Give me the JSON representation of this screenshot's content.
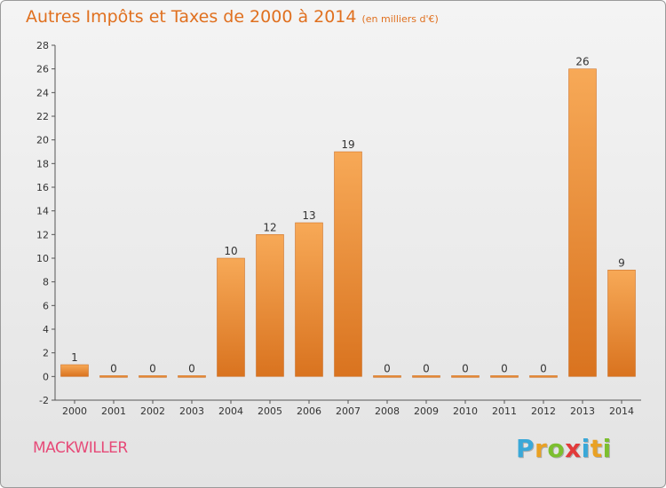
{
  "header": {
    "title": "Autres Impôts et Taxes de 2000 à 2014",
    "unit": "(en milliers d'€)"
  },
  "footer": {
    "commune": "MACKWILLER",
    "brand": "Proxiti",
    "brand_letters": [
      {
        "ch": "P",
        "color": "#3aa8d8"
      },
      {
        "ch": "r",
        "color": "#e9a124"
      },
      {
        "ch": "o",
        "color": "#7cbf2f"
      },
      {
        "ch": "x",
        "color": "#e23a3a"
      },
      {
        "ch": "i",
        "color": "#3aa8d8"
      },
      {
        "ch": "t",
        "color": "#e9a124"
      },
      {
        "ch": "i",
        "color": "#7cbf2f"
      }
    ]
  },
  "colors": {
    "title": "#e0701f",
    "bar_top": "#f7a957",
    "bar_bottom": "#d9731f",
    "commune": "#e64a78",
    "axis": "#555555",
    "grid": "#cfcfcf"
  },
  "chart_data": {
    "type": "bar",
    "title": "Autres Impôts et Taxes de 2000 à 2014",
    "subtitle": "(en milliers d'€)",
    "xlabel": "",
    "ylabel": "",
    "categories": [
      "2000",
      "2001",
      "2002",
      "2003",
      "2004",
      "2005",
      "2006",
      "2007",
      "2008",
      "2009",
      "2010",
      "2011",
      "2012",
      "2013",
      "2014"
    ],
    "values": [
      1,
      0,
      0,
      0,
      10,
      12,
      13,
      19,
      0,
      0,
      0,
      0,
      0,
      26,
      9
    ],
    "ylim": [
      -2,
      28
    ],
    "yticks": [
      -2,
      0,
      2,
      4,
      6,
      8,
      10,
      12,
      14,
      16,
      18,
      20,
      22,
      24,
      26,
      28
    ],
    "grid": false,
    "legend": "none"
  }
}
